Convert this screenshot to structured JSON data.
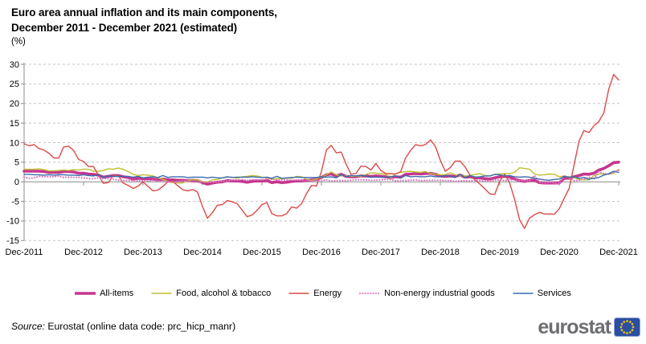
{
  "title": {
    "line1": "Euro area annual inflation and its main components,",
    "line2": "December 2011 - December 2021 (estimated)",
    "unit": "(%)"
  },
  "chart_data": {
    "type": "line",
    "title": "Euro area annual inflation and its main components, December 2011 - December 2021 (estimated)",
    "ylabel": "(%)",
    "ylim": [
      -15,
      30
    ],
    "y_ticks": [
      30,
      25,
      20,
      15,
      10,
      5,
      0,
      -5,
      -10,
      -15
    ],
    "grid": "dashed-horizontal",
    "zero_axis": "solid",
    "legend_position": "bottom",
    "x_frequency": "monthly",
    "points_per_series": 121,
    "x_tick_labels": [
      "Dec-2011",
      "Dec-2012",
      "Dec-2013",
      "Dec-2014",
      "Dec-2015",
      "Dec-2016",
      "Dec-2017",
      "Dec-2018",
      "Dec-2019",
      "Dec-2020",
      "Dec-2021"
    ],
    "colors": {
      "grid": "#C4C4C4",
      "axis": "#8C8C8C",
      "zero_line": "#8C8C8C"
    },
    "series": [
      {
        "name": "All-items",
        "color": "#C5368F",
        "width": 3.6,
        "style": "solid",
        "values": [
          2.7,
          2.7,
          2.7,
          2.7,
          2.6,
          2.4,
          2.4,
          2.4,
          2.6,
          2.6,
          2.5,
          2.2,
          2.2,
          2.0,
          1.9,
          1.7,
          1.2,
          1.4,
          1.6,
          1.6,
          1.3,
          1.1,
          0.7,
          0.9,
          0.8,
          0.8,
          0.7,
          0.5,
          0.7,
          0.5,
          0.5,
          0.4,
          0.4,
          0.3,
          0.4,
          0.3,
          -0.2,
          -0.6,
          -0.3,
          -0.1,
          0.0,
          0.3,
          0.2,
          0.2,
          0.1,
          -0.1,
          0.1,
          0.2,
          0.2,
          0.3,
          -0.2,
          0.0,
          -0.2,
          -0.1,
          0.1,
          0.2,
          0.2,
          0.4,
          0.5,
          0.6,
          1.1,
          1.8,
          2.0,
          1.5,
          1.9,
          1.4,
          1.3,
          1.3,
          1.5,
          1.5,
          1.4,
          1.5,
          1.4,
          1.3,
          1.1,
          1.3,
          1.2,
          1.9,
          2.0,
          2.1,
          2.0,
          2.1,
          2.2,
          1.9,
          1.5,
          1.4,
          1.5,
          1.4,
          1.7,
          1.2,
          1.3,
          1.0,
          1.0,
          0.8,
          0.7,
          1.0,
          1.3,
          1.4,
          1.2,
          0.7,
          0.3,
          0.1,
          0.3,
          0.4,
          -0.2,
          -0.3,
          -0.3,
          -0.3,
          -0.3,
          0.9,
          0.9,
          1.3,
          1.6,
          2.0,
          1.9,
          2.2,
          3.0,
          3.4,
          4.1,
          4.9,
          5.0
        ]
      },
      {
        "name": "Food, alcohol & tobacco",
        "color": "#BFBE33",
        "width": 1.4,
        "style": "solid",
        "values": [
          3.2,
          3.2,
          3.2,
          3.3,
          3.1,
          2.8,
          2.8,
          2.9,
          3.0,
          2.9,
          3.1,
          3.0,
          3.2,
          3.2,
          2.7,
          2.7,
          2.9,
          3.3,
          3.2,
          3.5,
          3.2,
          2.6,
          1.9,
          1.6,
          1.8,
          1.7,
          1.5,
          1.0,
          0.7,
          0.1,
          -0.2,
          -0.3,
          -0.3,
          0.3,
          0.5,
          0.5,
          0.0,
          -0.1,
          0.5,
          0.6,
          1.0,
          1.2,
          1.2,
          0.9,
          1.3,
          1.4,
          1.6,
          1.5,
          1.2,
          1.0,
          0.6,
          0.8,
          0.8,
          0.9,
          0.9,
          1.4,
          1.3,
          0.7,
          0.4,
          0.7,
          1.2,
          1.8,
          2.5,
          1.8,
          1.5,
          1.5,
          1.4,
          1.4,
          1.4,
          1.9,
          2.3,
          2.2,
          2.1,
          1.9,
          1.0,
          2.1,
          2.4,
          2.6,
          2.7,
          2.5,
          2.4,
          2.6,
          2.2,
          1.9,
          1.8,
          1.8,
          2.3,
          1.8,
          1.5,
          1.5,
          1.6,
          1.9,
          2.1,
          1.6,
          1.5,
          1.9,
          2.0,
          2.1,
          2.1,
          2.4,
          3.6,
          3.4,
          3.2,
          2.0,
          1.7,
          1.8,
          2.0,
          1.9,
          1.3,
          1.5,
          1.3,
          1.1,
          0.6,
          0.5,
          0.5,
          1.6,
          2.0,
          2.0,
          1.9,
          2.2,
          3.2
        ]
      },
      {
        "name": "Energy",
        "color": "#DC4A47",
        "width": 1.4,
        "style": "solid",
        "values": [
          9.7,
          9.2,
          9.5,
          8.5,
          8.1,
          7.3,
          6.1,
          6.1,
          8.9,
          9.1,
          8.0,
          5.7,
          5.2,
          3.9,
          3.9,
          1.7,
          -0.4,
          -0.2,
          1.6,
          1.6,
          -0.3,
          -0.9,
          -1.7,
          -1.1,
          0.0,
          -1.2,
          -2.3,
          -2.1,
          -1.2,
          0.0,
          0.1,
          -1.0,
          -2.0,
          -2.3,
          -2.0,
          -2.6,
          -6.3,
          -9.3,
          -7.9,
          -6.0,
          -5.8,
          -4.8,
          -5.1,
          -5.6,
          -7.2,
          -8.9,
          -8.5,
          -7.3,
          -5.8,
          -5.3,
          -8.1,
          -8.7,
          -8.7,
          -8.1,
          -6.4,
          -6.7,
          -5.6,
          -3.0,
          -0.9,
          -1.1,
          2.6,
          8.1,
          9.3,
          7.4,
          7.6,
          4.5,
          1.9,
          2.2,
          4.0,
          3.9,
          3.0,
          4.7,
          2.9,
          2.1,
          2.1,
          2.0,
          2.6,
          6.1,
          8.0,
          9.5,
          9.2,
          9.5,
          10.7,
          9.1,
          5.5,
          2.7,
          3.6,
          5.3,
          5.3,
          3.8,
          1.7,
          0.5,
          -0.6,
          -1.8,
          -3.1,
          -3.2,
          0.2,
          1.9,
          -0.3,
          -4.5,
          -9.7,
          -11.9,
          -9.3,
          -8.4,
          -7.8,
          -8.2,
          -8.2,
          -8.3,
          -6.9,
          -4.2,
          -1.7,
          4.3,
          10.4,
          13.1,
          12.6,
          14.3,
          15.4,
          17.6,
          23.7,
          27.4,
          26.0
        ]
      },
      {
        "name": "Non-energy industrial goods",
        "color": "#D876BC",
        "width": 2.1,
        "style": "dotted",
        "values": [
          1.2,
          0.9,
          1.0,
          1.4,
          1.3,
          1.3,
          1.3,
          1.5,
          1.1,
          1.2,
          1.1,
          1.1,
          1.0,
          0.8,
          0.8,
          1.0,
          0.8,
          0.8,
          0.7,
          0.4,
          0.4,
          0.4,
          0.3,
          0.2,
          0.3,
          0.2,
          0.4,
          0.2,
          0.1,
          0.0,
          -0.1,
          0.0,
          0.3,
          0.2,
          -0.1,
          -0.1,
          0.0,
          -0.1,
          -0.1,
          0.0,
          0.1,
          0.2,
          0.4,
          0.4,
          0.6,
          0.3,
          0.6,
          0.5,
          0.5,
          0.7,
          0.7,
          0.5,
          0.5,
          0.5,
          0.4,
          0.4,
          0.3,
          0.3,
          0.3,
          0.3,
          0.3,
          0.5,
          0.2,
          0.3,
          0.3,
          0.3,
          0.4,
          0.5,
          0.5,
          0.5,
          0.4,
          0.4,
          0.5,
          0.6,
          0.6,
          0.2,
          0.3,
          0.3,
          0.4,
          0.5,
          0.3,
          0.3,
          0.4,
          0.4,
          0.4,
          0.3,
          0.3,
          0.1,
          0.2,
          0.3,
          0.2,
          0.4,
          0.3,
          0.2,
          0.1,
          0.4,
          0.5,
          0.3,
          0.5,
          0.5,
          0.3,
          0.2,
          0.2,
          1.6,
          -0.1,
          -0.3,
          -0.1,
          -0.3,
          -0.5,
          1.5,
          1.0,
          0.3,
          0.4,
          0.7,
          1.2,
          0.7,
          2.6,
          2.1,
          2.0,
          2.4,
          2.9
        ]
      },
      {
        "name": "Services",
        "color": "#3A6BAD",
        "width": 1.4,
        "style": "solid",
        "values": [
          1.9,
          1.9,
          1.8,
          1.8,
          1.7,
          1.8,
          1.7,
          1.8,
          1.8,
          1.7,
          1.7,
          1.6,
          1.8,
          1.6,
          1.5,
          1.8,
          1.1,
          1.5,
          1.4,
          1.4,
          1.4,
          1.4,
          1.2,
          1.4,
          1.0,
          1.2,
          1.3,
          1.1,
          1.6,
          1.1,
          1.3,
          1.3,
          1.3,
          1.1,
          1.2,
          1.2,
          1.2,
          1.0,
          1.2,
          1.0,
          1.0,
          1.3,
          1.1,
          1.2,
          1.2,
          1.2,
          1.3,
          1.2,
          1.1,
          1.2,
          0.9,
          1.4,
          0.9,
          1.0,
          1.1,
          1.2,
          1.1,
          1.1,
          1.1,
          1.1,
          1.3,
          1.2,
          1.3,
          1.0,
          1.8,
          1.3,
          1.6,
          1.5,
          1.6,
          1.5,
          1.2,
          1.2,
          1.2,
          1.2,
          1.3,
          1.5,
          1.0,
          1.6,
          1.3,
          1.4,
          1.3,
          1.3,
          1.5,
          1.3,
          1.3,
          1.6,
          1.4,
          1.1,
          1.9,
          1.0,
          1.6,
          1.2,
          1.3,
          1.5,
          1.5,
          1.9,
          1.8,
          1.5,
          1.6,
          1.3,
          1.2,
          1.3,
          1.2,
          0.9,
          0.7,
          0.5,
          0.4,
          0.6,
          0.7,
          1.4,
          1.2,
          1.3,
          0.9,
          1.1,
          0.7,
          0.9,
          1.1,
          1.7,
          2.1,
          2.7,
          2.4
        ]
      }
    ]
  },
  "source": {
    "prefix": "Source:",
    "text": " Eurostat (online data code: prc_hicp_manr)"
  },
  "logo": {
    "text": "eurostat",
    "text_color": "#6D6E71",
    "flag_bg": "#2B4EA2",
    "flag_stars": "#FFCC00"
  }
}
